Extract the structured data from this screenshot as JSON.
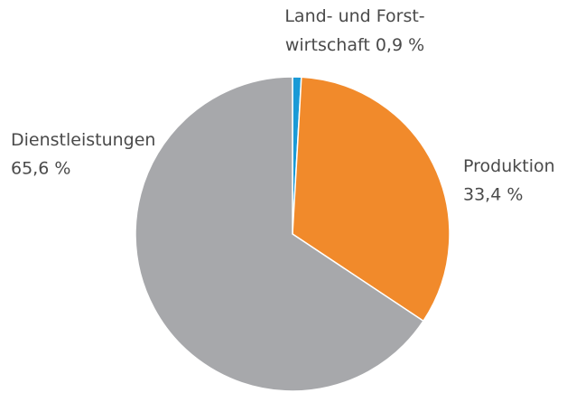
{
  "chart_data": {
    "type": "pie",
    "categories": [
      [
        "Land- und Forst-",
        "wirtschaft"
      ],
      [
        "Produktion"
      ],
      [
        "Dienstleistungen"
      ]
    ],
    "values": [
      0.9,
      33.4,
      65.6
    ],
    "value_labels": [
      "0,9 %",
      "33,4 %",
      "65,6 %"
    ],
    "colors": [
      "#1a9ad6",
      "#f18a2b",
      "#a7a8ab"
    ]
  }
}
